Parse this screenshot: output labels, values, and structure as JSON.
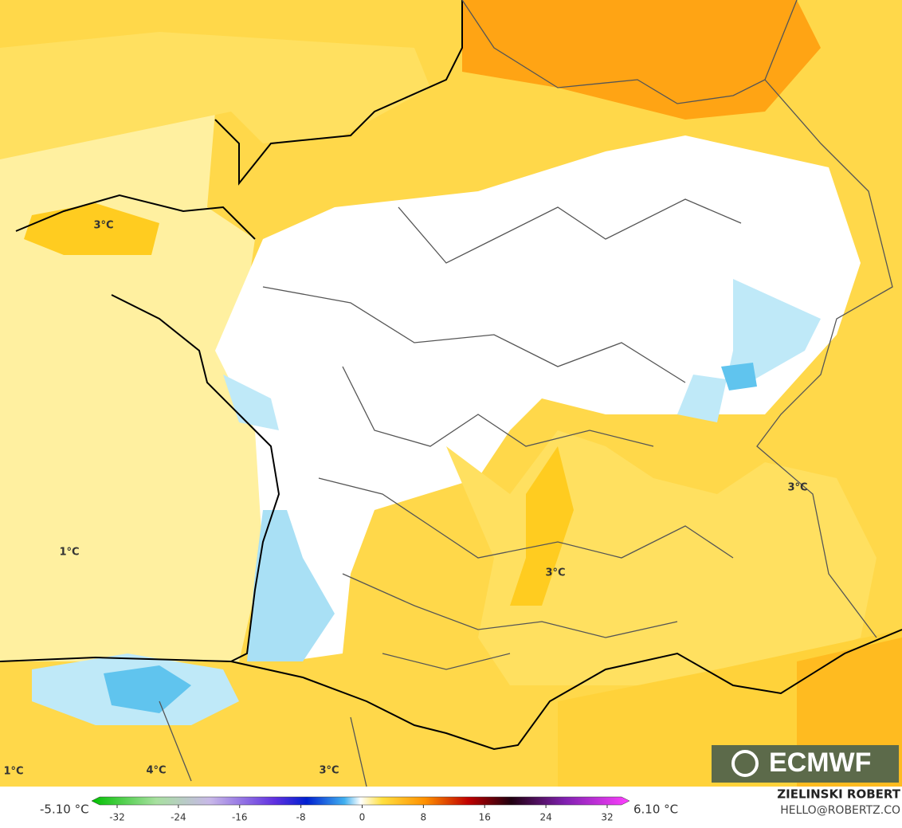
{
  "map": {
    "contour_labels": [
      "3°C",
      "1°C",
      "3°C",
      "3°C",
      "1°C",
      "4°C",
      "3°C"
    ],
    "logo": "ECMWF",
    "colorbar": {
      "min_label": "-5.10 °C",
      "max_label": "6.10 °C",
      "ticks": [
        -32,
        -24,
        -16,
        -8,
        0,
        8,
        16,
        24,
        32
      ]
    },
    "credit": {
      "author": "ZIELINSKI ROBERT",
      "contact": "HELLO@ROBERTZ.CO"
    }
  }
}
